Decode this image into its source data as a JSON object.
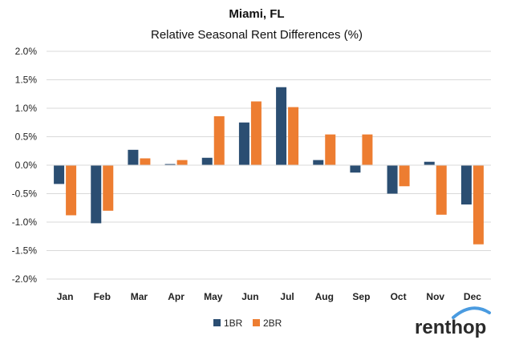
{
  "chart_data": {
    "type": "bar",
    "title": "Miami, FL",
    "subtitle": "Relative Seasonal Rent Differences (%)",
    "categories": [
      "Jan",
      "Feb",
      "Mar",
      "Apr",
      "May",
      "Jun",
      "Jul",
      "Aug",
      "Sep",
      "Oct",
      "Nov",
      "Dec"
    ],
    "series": [
      {
        "name": "1BR",
        "color": "#2b4e72",
        "values": [
          -0.33,
          -1.02,
          0.27,
          0.02,
          0.13,
          0.75,
          1.37,
          0.09,
          -0.13,
          -0.5,
          0.06,
          -0.69
        ]
      },
      {
        "name": "2BR",
        "color": "#ed7d31",
        "values": [
          -0.88,
          -0.8,
          0.12,
          0.09,
          0.86,
          1.12,
          1.02,
          0.54,
          0.54,
          -0.37,
          -0.87,
          -1.39
        ]
      }
    ],
    "ylim": [
      -2.0,
      2.0
    ],
    "yticks": [
      2.0,
      1.5,
      1.0,
      0.5,
      0.0,
      -0.5,
      -1.0,
      -1.5,
      -2.0
    ],
    "ytick_labels": [
      "2.0%",
      "1.5%",
      "1.0%",
      "0.5%",
      "0.0%",
      "-0.5%",
      "-1.0%",
      "-1.5%",
      "-2.0%"
    ],
    "xlabel": "",
    "ylabel": "",
    "grid": true,
    "gridline_color": "#d9d9d9",
    "legend_position": "bottom"
  },
  "brand": {
    "logo_text": "renthop",
    "logo_color": "#2a2a2a",
    "swoosh_color": "#4a9be0"
  }
}
